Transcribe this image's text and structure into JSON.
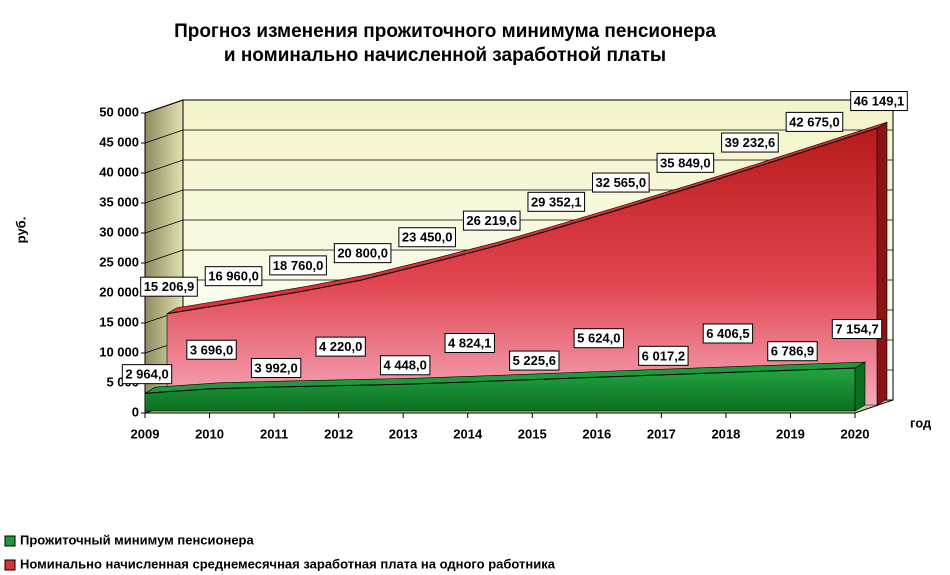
{
  "chart_data": {
    "type": "area",
    "title": [
      "Прогноз изменения прожиточного минимума  пенсионера",
      "и номинально начисленной заработной платы"
    ],
    "y_label": "руб.",
    "x_label": "год",
    "x": [
      2009,
      2010,
      2011,
      2012,
      2013,
      2014,
      2015,
      2016,
      2017,
      2018,
      2019,
      2020
    ],
    "xlim": [
      2009,
      2020
    ],
    "xticks": [
      2009,
      2010,
      2011,
      2012,
      2013,
      2014,
      2015,
      2016,
      2017,
      2018,
      2019,
      2020
    ],
    "ylim": [
      0,
      50000
    ],
    "yticks": [
      0,
      {
        "value": 5000,
        "label": "5 000"
      },
      {
        "value": 10000,
        "label": "10 000"
      },
      {
        "value": 15000,
        "label": "15 000"
      },
      {
        "value": 20000,
        "label": "20 000"
      },
      {
        "value": 25000,
        "label": "25 000"
      },
      {
        "value": 30000,
        "label": "30 000"
      },
      {
        "value": 35000,
        "label": "35 000"
      },
      {
        "value": 40000,
        "label": "40 000"
      },
      {
        "value": 45000,
        "label": "45 000"
      },
      {
        "value": 50000,
        "label": "50 000"
      }
    ],
    "grid": true,
    "legend": "bottom-left",
    "series": [
      {
        "name": "Прожиточный минимум пенсионера",
        "color": "#1e9a3c",
        "values": [
          2964.0,
          3696.0,
          3992.0,
          4220.0,
          4448.0,
          4824.1,
          5225.6,
          5624.0,
          6017.2,
          6406.5,
          6786.9,
          7154.7
        ],
        "value_labels": [
          "2 964,0",
          "3 696,0",
          "3 992,0",
          "4 220,0",
          "4 448,0",
          "4 824,1",
          "5 225,6",
          "5 624,0",
          "6 017,2",
          "6 406,5",
          "6 786,9",
          "7 154,7"
        ]
      },
      {
        "name": "Номинально начисленная среднемесячная заработная плата на одного работника",
        "color": "#d9323a",
        "values": [
          15206.9,
          16960.0,
          18760.0,
          20800.0,
          23450.0,
          26219.6,
          29352.1,
          32565.0,
          35849.0,
          39232.6,
          42675.0,
          46149.1
        ],
        "value_labels": [
          "15 206,9",
          "16 960,0",
          "18 760,0",
          "20 800,0",
          "23 450,0",
          "26 219,6",
          "29 352,1",
          "32 565,0",
          "35 849,0",
          "39 232,6",
          "42 675,0",
          "46 149,1"
        ]
      }
    ]
  }
}
